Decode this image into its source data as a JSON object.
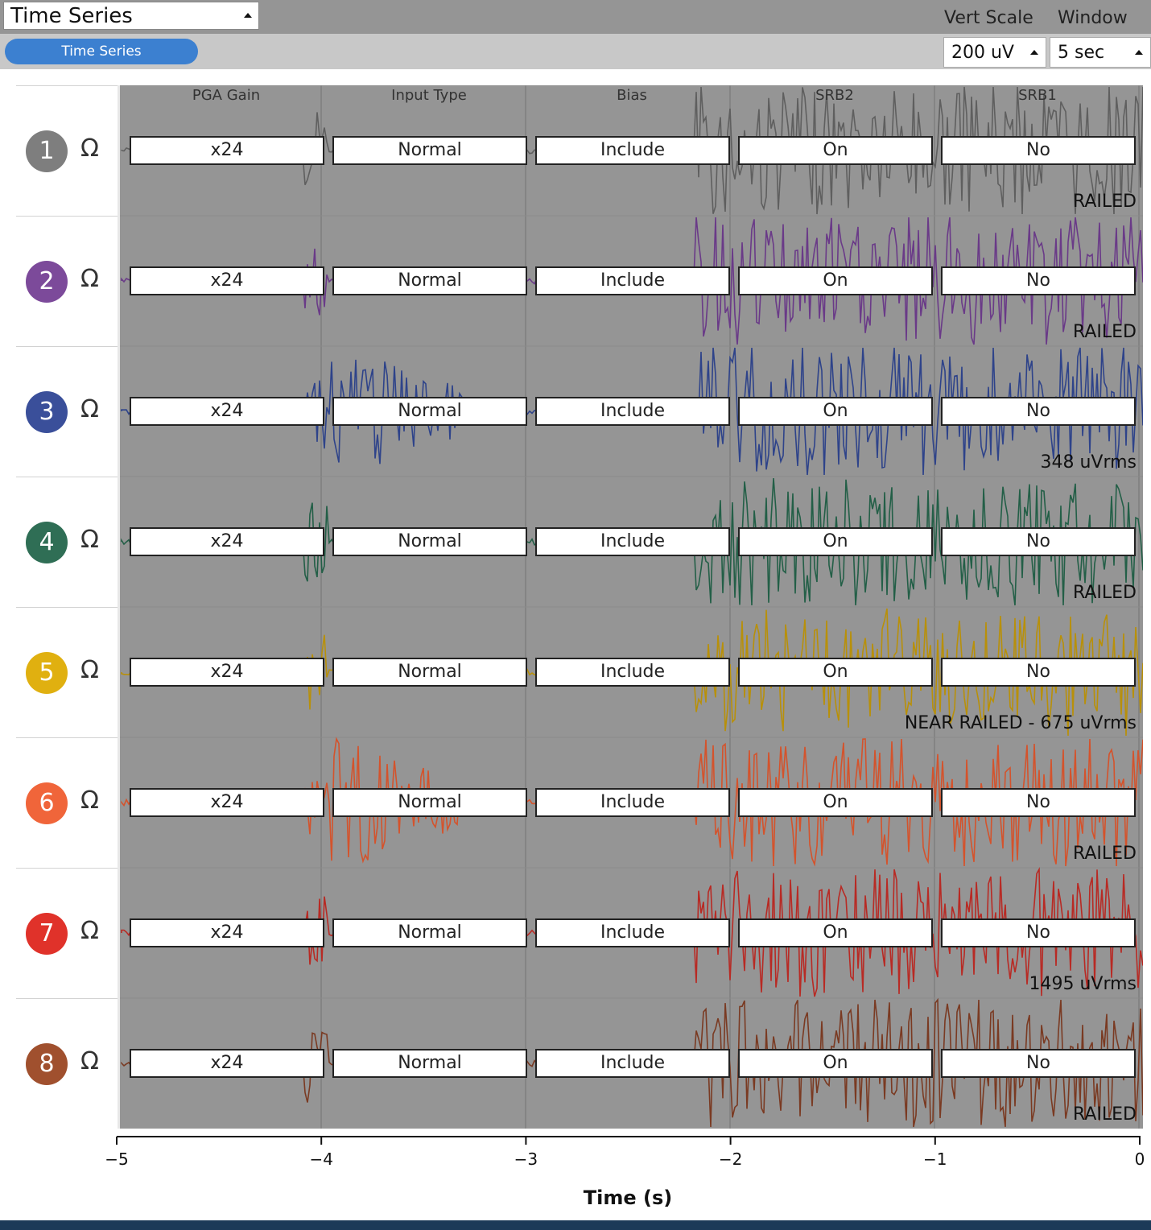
{
  "widget": {
    "title": "Time Series",
    "pill_label": "Time Series"
  },
  "header": {
    "vert_scale_label": "Vert Scale",
    "window_label": "Window",
    "vert_scale_value": "200 uV",
    "window_value": "5 sec"
  },
  "columns": [
    "PGA Gain",
    "Input Type",
    "Bias",
    "SRB2",
    "SRB1"
  ],
  "channels": [
    {
      "number": "1",
      "color": "#7e7e7e",
      "trace_color": "#5f5f5f",
      "settings": [
        "x24",
        "Normal",
        "Include",
        "On",
        "No"
      ],
      "status": "RAILED"
    },
    {
      "number": "2",
      "color": "#7c4a9a",
      "trace_color": "#6a3a88",
      "settings": [
        "x24",
        "Normal",
        "Include",
        "On",
        "No"
      ],
      "status": "RAILED"
    },
    {
      "number": "3",
      "color": "#3a4f9a",
      "trace_color": "#2e438a",
      "settings": [
        "x24",
        "Normal",
        "Include",
        "On",
        "No"
      ],
      "status": "348 uVrms"
    },
    {
      "number": "4",
      "color": "#2f6e55",
      "trace_color": "#235f47",
      "settings": [
        "x24",
        "Normal",
        "Include",
        "On",
        "No"
      ],
      "status": "RAILED"
    },
    {
      "number": "5",
      "color": "#e0b010",
      "trace_color": "#b8900a",
      "settings": [
        "x24",
        "Normal",
        "Include",
        "On",
        "No"
      ],
      "status": "NEAR RAILED - 675 uVrms"
    },
    {
      "number": "6",
      "color": "#f0653a",
      "trace_color": "#d4532c",
      "settings": [
        "x24",
        "Normal",
        "Include",
        "On",
        "No"
      ],
      "status": "RAILED"
    },
    {
      "number": "7",
      "color": "#e0322a",
      "trace_color": "#b82a24",
      "settings": [
        "x24",
        "Normal",
        "Include",
        "On",
        "No"
      ],
      "status": "1495 uVrms"
    },
    {
      "number": "8",
      "color": "#a0502e",
      "trace_color": "#7a3a22",
      "settings": [
        "x24",
        "Normal",
        "Include",
        "On",
        "No"
      ],
      "status": "RAILED"
    }
  ],
  "chart_data": {
    "type": "line",
    "xlabel": "Time (s)",
    "xlim": [
      -5,
      0
    ],
    "x_ticks": [
      "−5",
      "−4",
      "−3",
      "−2",
      "−1",
      "0"
    ]
  }
}
